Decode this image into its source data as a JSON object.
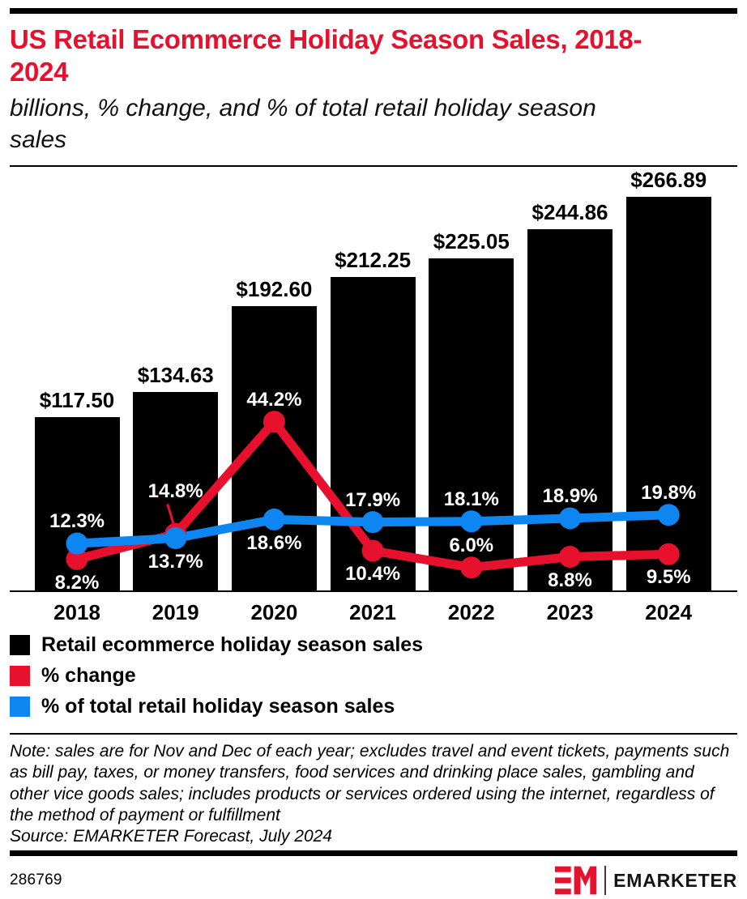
{
  "header": {
    "title": "US Retail Ecommerce Holiday Season Sales, 2018-2024",
    "subtitle": "billions, % change, and % of total retail holiday season sales"
  },
  "chart_data": {
    "type": "bar+line",
    "categories": [
      "2018",
      "2019",
      "2020",
      "2021",
      "2022",
      "2023",
      "2024"
    ],
    "series": [
      {
        "name": "Retail ecommerce holiday season sales",
        "type": "bar",
        "unit": "billions of dollars",
        "color": "#000000",
        "values": [
          117.5,
          134.63,
          192.6,
          212.25,
          225.05,
          244.86,
          266.89
        ],
        "labels": [
          "$117.50",
          "$134.63",
          "$192.60",
          "$212.25",
          "$225.05",
          "$244.86",
          "$266.89"
        ]
      },
      {
        "name": "% change",
        "type": "line",
        "color": "#e8112d",
        "values": [
          8.2,
          14.8,
          44.2,
          10.4,
          6.0,
          8.8,
          9.5
        ],
        "labels": [
          "8.2%",
          "14.8%",
          "44.2%",
          "10.4%",
          "6.0%",
          "8.8%",
          "9.5%"
        ],
        "label_positions": [
          "below",
          "above-far",
          "above",
          "below",
          "above",
          "below",
          "below"
        ]
      },
      {
        "name": "% of total retail holiday season sales",
        "type": "line",
        "color": "#0d86f2",
        "values": [
          12.3,
          13.7,
          18.6,
          17.9,
          18.1,
          18.9,
          19.8
        ],
        "labels": [
          "12.3%",
          "13.7%",
          "18.6%",
          "17.9%",
          "18.1%",
          "18.9%",
          "19.8%"
        ],
        "label_positions": [
          "above",
          "below",
          "below",
          "above",
          "above",
          "above",
          "above"
        ]
      }
    ],
    "bar_axis": {
      "min": 0,
      "max": 287,
      "gridlines": false
    },
    "pct_axis": {
      "min": 0,
      "max": 111,
      "gridlines": false
    },
    "legend_position": "bottom-left"
  },
  "legend": [
    {
      "label": "Retail ecommerce holiday season sales",
      "color": "#000000"
    },
    {
      "label": "% change",
      "color": "#e8112d"
    },
    {
      "label": "% of total retail holiday season sales",
      "color": "#0d86f2"
    }
  ],
  "footnote": {
    "note": "Note: sales are for Nov and Dec of each year; excludes travel and event tickets, payments such as bill pay, taxes, or money transfers, food services and drinking place sales, gambling and other vice goods sales; includes products or services ordered using the internet, regardless of the method of payment or fulfillment",
    "source": "Source: EMARKETER Forecast, July 2024"
  },
  "footer": {
    "chart_id": "286769",
    "brand": "EMARKETER"
  },
  "colors": {
    "title_red": "#e8112d",
    "line_red": "#e8112d",
    "line_blue": "#0d86f2",
    "bar_black": "#000000"
  }
}
